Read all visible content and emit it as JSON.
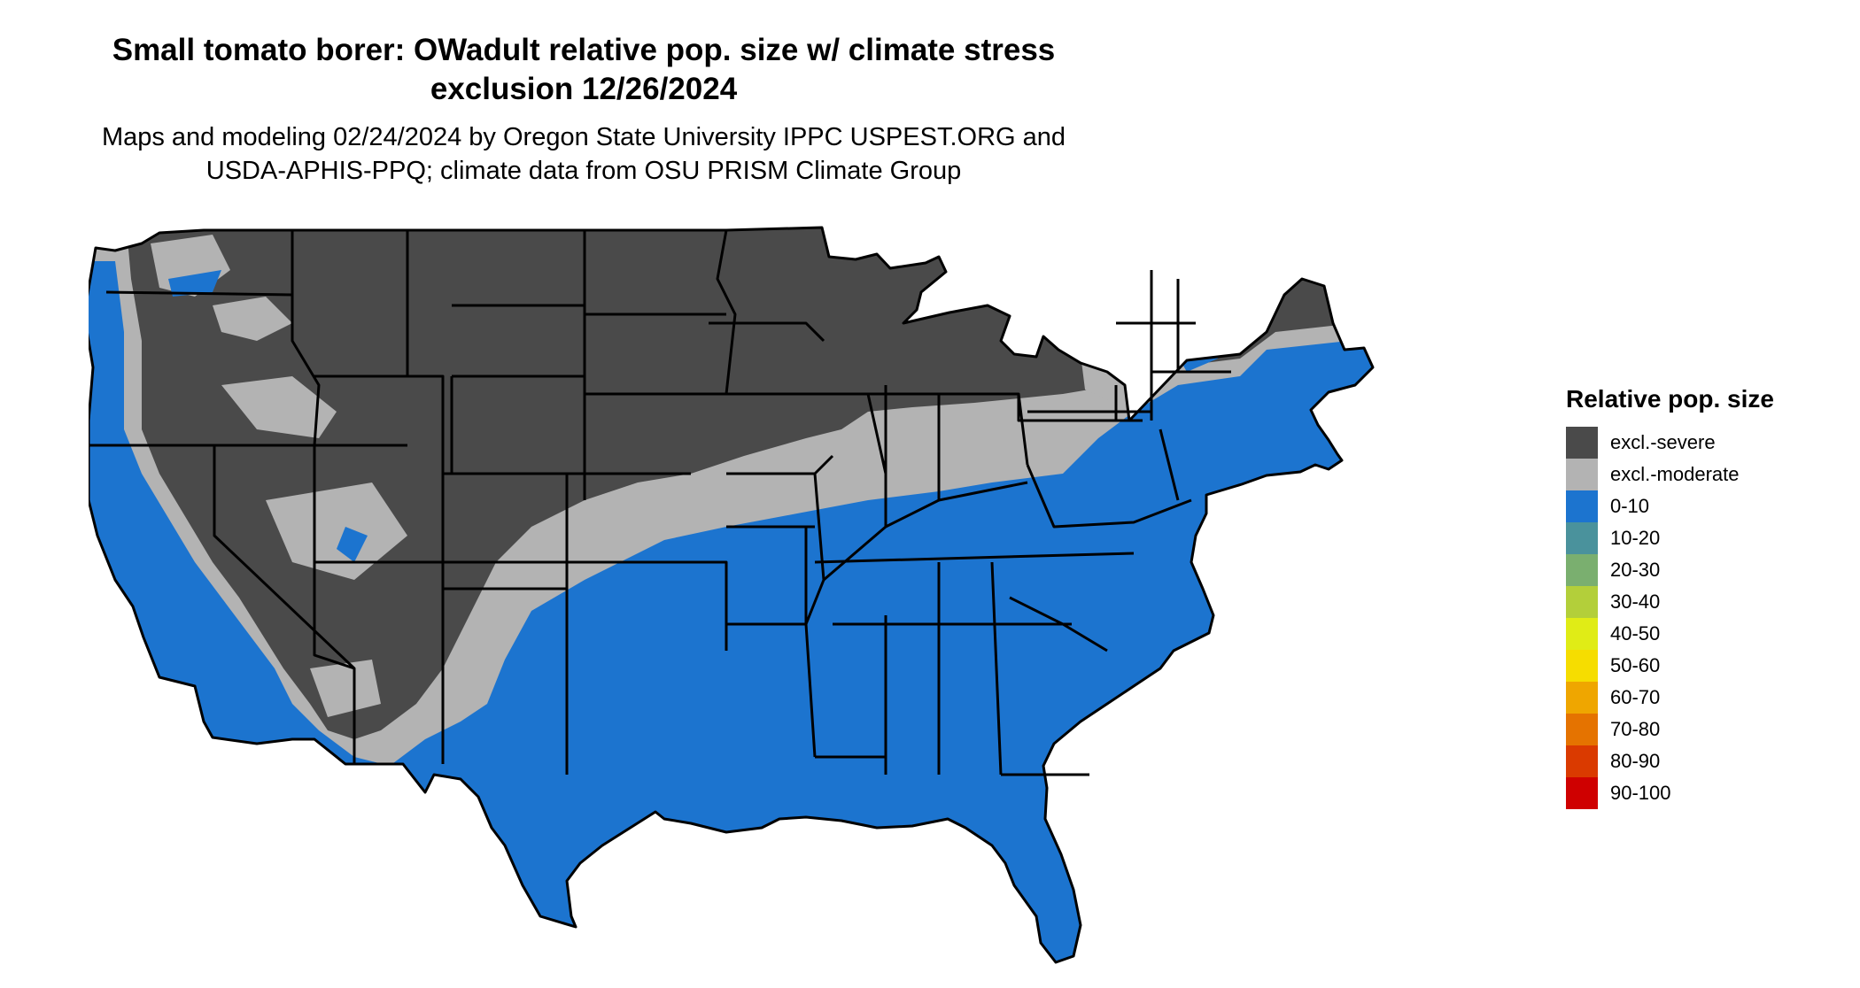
{
  "title": {
    "line1": "Small tomato borer: OWadult relative pop. size w/ climate stress",
    "line2": "exclusion 12/26/2024"
  },
  "subtitle": {
    "line1": "Maps and modeling 02/24/2024 by Oregon State University IPPC USPEST.ORG and",
    "line2": "USDA-APHIS-PPQ; climate data from OSU PRISM Climate Group"
  },
  "colors": {
    "excl_severe": "#4a4a4a",
    "excl_moderate": "#b3b3b3",
    "range_0_10": "#1c74cf",
    "state_border": "#000000",
    "background": "#ffffff"
  },
  "legend": {
    "title": "Relative pop. size",
    "items": [
      {
        "label": "excl.-severe",
        "color": "#4a4a4a"
      },
      {
        "label": "excl.-moderate",
        "color": "#b3b3b3"
      },
      {
        "label": "0-10",
        "color": "#1c74cf"
      },
      {
        "label": "10-20",
        "color": "#4a929c"
      },
      {
        "label": "20-30",
        "color": "#7aaf6f"
      },
      {
        "label": "30-40",
        "color": "#b3cf3a"
      },
      {
        "label": "40-50",
        "color": "#e0ec16"
      },
      {
        "label": "50-60",
        "color": "#f6dd00"
      },
      {
        "label": "60-70",
        "color": "#efa600"
      },
      {
        "label": "70-80",
        "color": "#e57300"
      },
      {
        "label": "80-90",
        "color": "#da3a00"
      },
      {
        "label": "90-100",
        "color": "#cf0000"
      }
    ]
  }
}
